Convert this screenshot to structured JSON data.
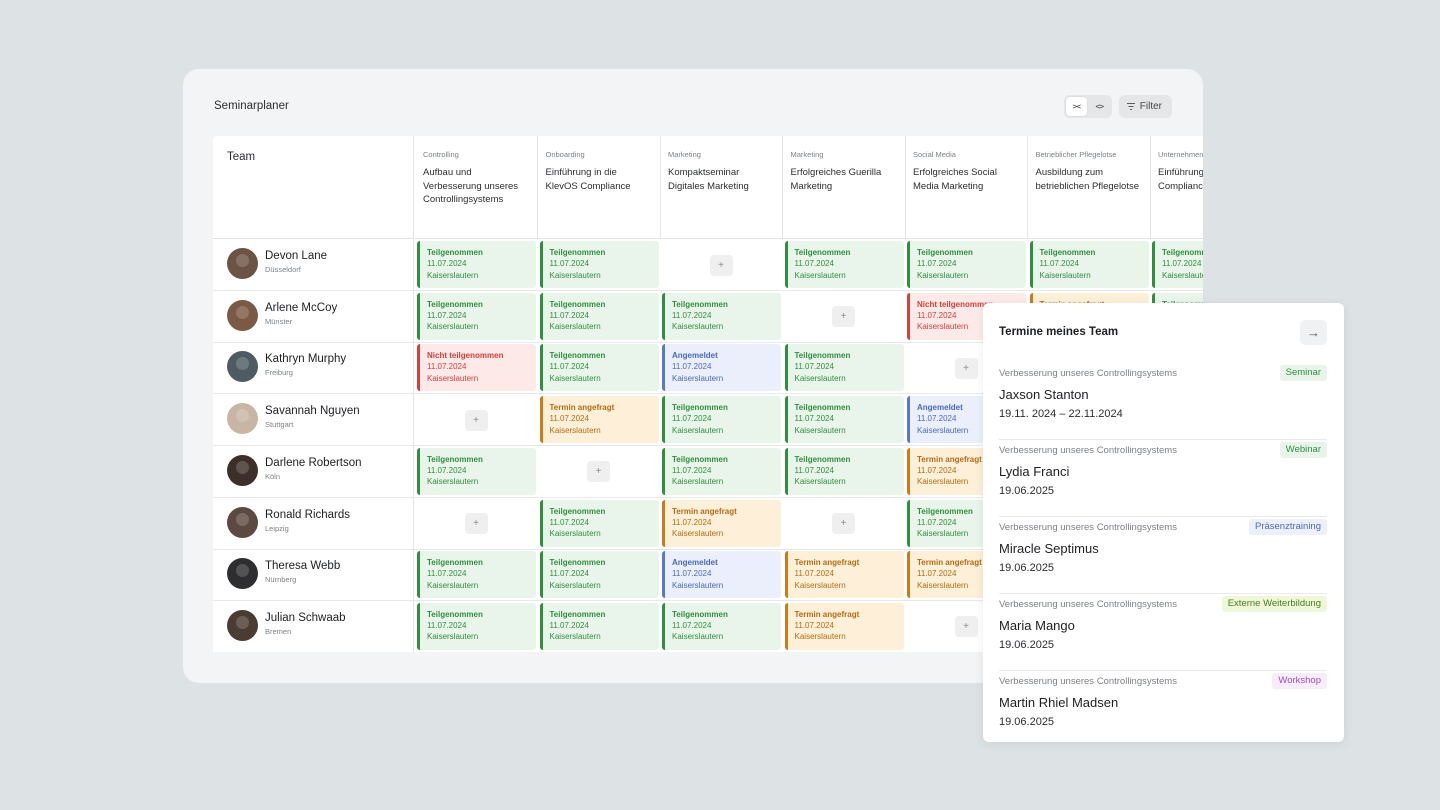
{
  "planner": {
    "title": "Seminarplaner",
    "filter_label": "Filter",
    "collapse_glyph": "><",
    "expand_glyph": "<>",
    "team_header": "Team"
  },
  "columns": [
    {
      "category": "Controlling",
      "title": "Aufbau und Verbesserung unseres Controllingsystems"
    },
    {
      "category": "Onboarding",
      "title": "Einführung in die KlevOS Compliance"
    },
    {
      "category": "Marketing",
      "title": "Kompaktseminar Digitales Marketing"
    },
    {
      "category": "Marketing",
      "title": "Erfolgreiches Guerilla Marketing"
    },
    {
      "category": "Social Media",
      "title": "Erfolgreiches Social Media Marketing"
    },
    {
      "category": "Betrieblicher Pflegelotse",
      "title": "Ausbildung zum betrieblichen Pflegelotse"
    },
    {
      "category": "Unternehmen",
      "title": "Einführung KlevOS Compliance"
    }
  ],
  "status_labels": {
    "green": "Teilgenommen",
    "red": "Nicht teilgenommen",
    "blue": "Angemeldet",
    "orange": "Termin angefragt"
  },
  "cell_date": "11.07.2024",
  "cell_location": "Kaiserslautern",
  "add_label": "+",
  "status_colors": {
    "green": "#2f8f3e",
    "red": "#d6403a",
    "blue": "#4a67c3",
    "orange": "#b56c13"
  },
  "rows": [
    {
      "name": "Devon Lane",
      "city": "Düsseldorf",
      "avatar_color": "#6b5443",
      "cells": [
        "green",
        "green",
        "add",
        "green",
        "green",
        "green",
        "green"
      ]
    },
    {
      "name": "Arlene McCoy",
      "city": "Münster",
      "avatar_color": "#7a5a45",
      "cells": [
        "green",
        "green",
        "green",
        "add",
        "red",
        "orange",
        "green"
      ]
    },
    {
      "name": "Kathryn Murphy",
      "city": "Freiburg",
      "avatar_color": "#4f5b63",
      "cells": [
        "red",
        "green",
        "blue",
        "green",
        "add",
        "green",
        "green"
      ]
    },
    {
      "name": "Savannah Nguyen",
      "city": "Stuttgart",
      "avatar_color": "#c9b5a3",
      "cells": [
        "add",
        "orange",
        "green",
        "green",
        "blue",
        "green",
        "green"
      ]
    },
    {
      "name": "Darlene Robertson",
      "city": "Köln",
      "avatar_color": "#3d2f2a",
      "cells": [
        "green",
        "add",
        "green",
        "green",
        "orange",
        "green",
        "green"
      ]
    },
    {
      "name": "Ronald Richards",
      "city": "Leipzig",
      "avatar_color": "#5c4a40",
      "cells": [
        "add",
        "green",
        "orange",
        "add",
        "green",
        "green",
        "green"
      ]
    },
    {
      "name": "Theresa Webb",
      "city": "Nürnberg",
      "avatar_color": "#2e2e30",
      "cells": [
        "green",
        "green",
        "blue",
        "orange",
        "orange",
        "green",
        "green"
      ]
    },
    {
      "name": "Julian Schwaab",
      "city": "Bremen",
      "avatar_color": "#4a3b33",
      "cells": [
        "green",
        "green",
        "green",
        "orange",
        "add",
        "green",
        "green"
      ]
    }
  ],
  "team_panel": {
    "title": "Termine meines Team",
    "arrow_glyph": "→",
    "entries": [
      {
        "course": "Verbesserung unseres Controllingsystems",
        "name": "Jaxson Stanton",
        "date": "19.11. 2024 – 22.11.2024",
        "tag": "Seminar",
        "tag_bg": "#e8f4ea",
        "tag_color": "#2f8f3e"
      },
      {
        "course": "Verbesserung unseres Controllingsystems",
        "name": "Lydia Franci",
        "date": "19.06.2025",
        "tag": "Webinar",
        "tag_bg": "#e8f4ea",
        "tag_color": "#2f8f3e"
      },
      {
        "course": "Verbesserung unseres Controllingsystems",
        "name": "Miracle Septimus",
        "date": "19.06.2025",
        "tag": "Präsenztraining",
        "tag_bg": "#ecf0fb",
        "tag_color": "#4a67c3"
      },
      {
        "course": "Verbesserung unseres Controllingsystems",
        "name": "Maria Mango",
        "date": "19.06.2025",
        "tag": "Externe Weiterbildung",
        "tag_bg": "#eef8d9",
        "tag_color": "#4d7a1c"
      },
      {
        "course": "Verbesserung unseres Controllingsystems",
        "name": "Martin Rhiel Madsen",
        "date": "19.06.2025",
        "tag": "Workshop",
        "tag_bg": "#f6ecfb",
        "tag_color": "#9b4fc2"
      }
    ]
  }
}
